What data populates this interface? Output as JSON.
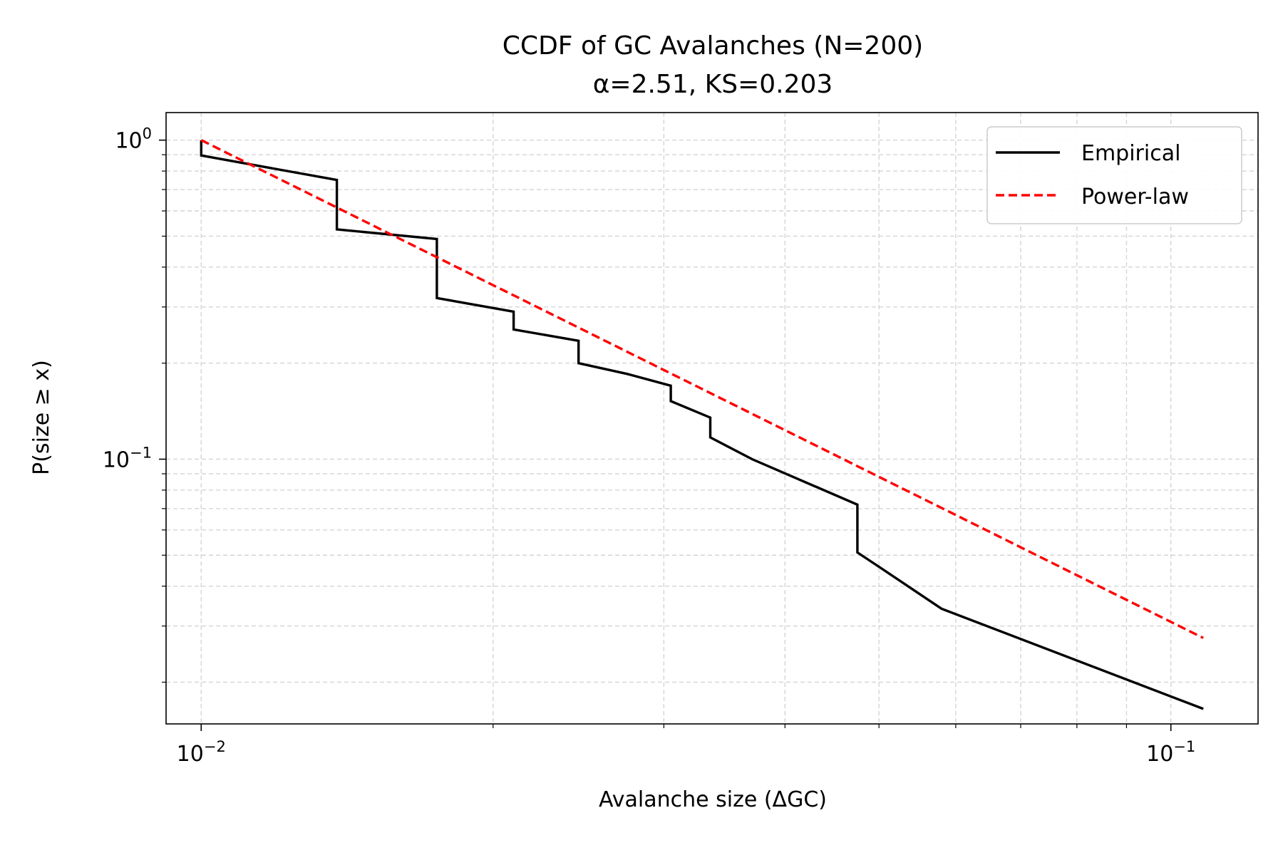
{
  "chart_data": {
    "type": "line",
    "title": "CCDF of GC Avalanches (N=200)",
    "subtitle": "α=2.51, KS=0.203",
    "xlabel": "Avalanche size (ΔGC)",
    "ylabel": "P(size ≥ x)",
    "xscale": "log",
    "yscale": "log",
    "xlim": [
      0.0092,
      0.123
    ],
    "ylim": [
      0.0148,
      1.22
    ],
    "x_ticks": [
      {
        "value": 0.01,
        "base": "10",
        "exp": "−2"
      },
      {
        "value": 0.1,
        "base": "10",
        "exp": "−1"
      }
    ],
    "y_ticks": [
      {
        "value": 1,
        "base": "10",
        "exp": "0"
      },
      {
        "value": 0.1,
        "base": "10",
        "exp": "−1"
      }
    ],
    "grid": true,
    "legend": "top-right",
    "series": [
      {
        "name": "Empirical",
        "color": "#000000",
        "style": "solid",
        "points": [
          [
            0.01,
            1.0
          ],
          [
            0.01,
            0.895
          ],
          [
            0.0138,
            0.75
          ],
          [
            0.0138,
            0.525
          ],
          [
            0.0175,
            0.49
          ],
          [
            0.0175,
            0.32
          ],
          [
            0.021,
            0.29
          ],
          [
            0.021,
            0.255
          ],
          [
            0.0245,
            0.235
          ],
          [
            0.0245,
            0.2
          ],
          [
            0.0275,
            0.185
          ],
          [
            0.0305,
            0.17
          ],
          [
            0.0305,
            0.152
          ],
          [
            0.0335,
            0.135
          ],
          [
            0.0335,
            0.117
          ],
          [
            0.037,
            0.1
          ],
          [
            0.0475,
            0.072
          ],
          [
            0.0475,
            0.051
          ],
          [
            0.05,
            0.046
          ],
          [
            0.058,
            0.034
          ],
          [
            0.108,
            0.0165
          ]
        ]
      },
      {
        "name": "Power-law",
        "color": "#ff0000",
        "style": "dashed",
        "alpha": 2.51,
        "xmin": 0.01,
        "xmax": 0.108
      }
    ]
  }
}
